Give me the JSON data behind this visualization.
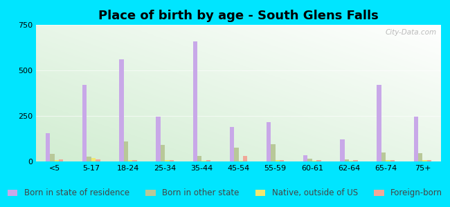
{
  "title": "Place of birth by age - South Glens Falls",
  "categories": [
    "<5",
    "5-17",
    "18-24",
    "25-34",
    "35-44",
    "45-54",
    "55-59",
    "60-61",
    "62-64",
    "65-74",
    "75+"
  ],
  "series": {
    "Born in state of residence": [
      155,
      420,
      560,
      245,
      660,
      190,
      215,
      35,
      120,
      420,
      245
    ],
    "Born in other state": [
      40,
      25,
      110,
      90,
      30,
      75,
      95,
      15,
      12,
      50,
      45
    ],
    "Native, outside of US": [
      8,
      20,
      8,
      8,
      5,
      5,
      8,
      5,
      5,
      8,
      8
    ],
    "Foreign-born": [
      10,
      10,
      8,
      8,
      8,
      30,
      8,
      8,
      8,
      8,
      8
    ]
  },
  "colors": {
    "Born in state of residence": "#c8a8e8",
    "Born in other state": "#b8c898",
    "Native, outside of US": "#f0e870",
    "Foreign-born": "#f0a898"
  },
  "ylim": [
    0,
    750
  ],
  "yticks": [
    0,
    250,
    500,
    750
  ],
  "fig_bg": "#00e5ff",
  "bar_width": 0.12,
  "title_fontsize": 13,
  "legend_fontsize": 8.5,
  "watermark": "City-Data.com"
}
